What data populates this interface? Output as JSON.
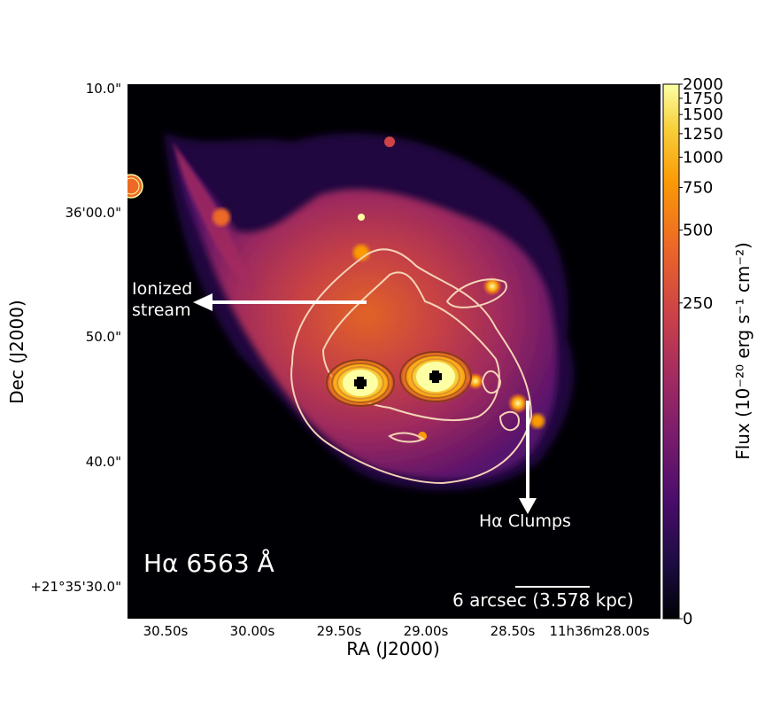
{
  "image": {
    "axes": {
      "xlabel": "RA (J2000)",
      "ylabel": "Dec (J2000)",
      "x_ticks": [
        "30.50s",
        "30.00s",
        "29.50s",
        "29.00s",
        "28.50s",
        "11h36m28.00s"
      ],
      "y_ticks": [
        "10.0\"",
        "36'00.0\"",
        "50.0\"",
        "40.0\"",
        "+21°35'30.0\""
      ]
    },
    "colorbar": {
      "label": "Flux (10⁻²⁰ erg s⁻¹ cm⁻²)",
      "colormap": "inferno",
      "ticks": [
        "2000",
        "1750",
        "1500",
        "1250",
        "1000",
        "750",
        "500",
        "250",
        "0"
      ],
      "tick_values": [
        2000,
        1750,
        1500,
        1250,
        1000,
        750,
        500,
        250,
        0
      ]
    },
    "annotations": {
      "stream_line1": "Ionized",
      "stream_line2": "stream",
      "clumps": "Hα Clumps",
      "line_label": "Hα 6563 Å",
      "scalebar": "6 arcsec (3.578 kpc)"
    },
    "colors": {
      "background": "#000000",
      "contour": "#f5d3b6",
      "arrow": "#ffffff",
      "core": "#fcffa4"
    }
  }
}
